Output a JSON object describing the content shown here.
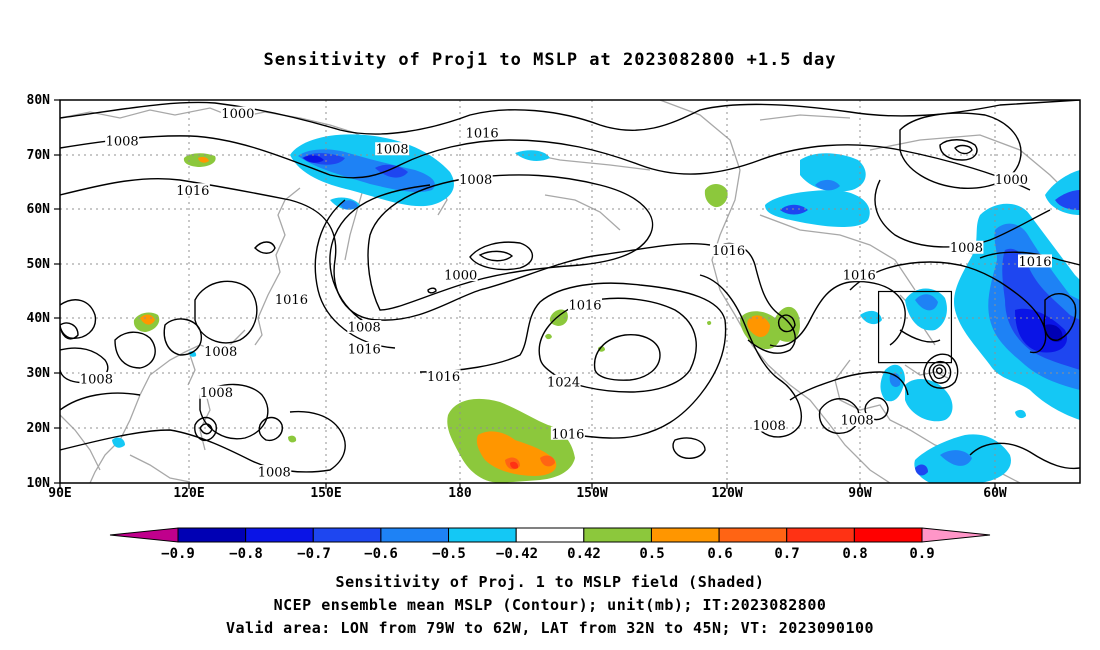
{
  "title": "Sensitivity of Proj1 to MSLP at 2023082800 +1.5 day",
  "axes": {
    "lat_labels": [
      "80N",
      "70N",
      "60N",
      "50N",
      "40N",
      "30N",
      "20N",
      "10N"
    ],
    "lon_labels": [
      "90E",
      "120E",
      "150E",
      "180",
      "150W",
      "120W",
      "90W",
      "60W"
    ],
    "lon_range": [
      90,
      328
    ],
    "lat_range": [
      10,
      80
    ],
    "lat_ticks": [
      80,
      70,
      60,
      50,
      40,
      30,
      20,
      10
    ],
    "lon_ticks": [
      90,
      120,
      150,
      180,
      210,
      240,
      270,
      300
    ]
  },
  "contour_labels": [
    {
      "text": "1000",
      "lon": 131.5,
      "lat": 77.5
    },
    {
      "text": "1008",
      "lon": 104.5,
      "lat": 72.5
    },
    {
      "text": "1008",
      "lon": 167.5,
      "lat": 71.0
    },
    {
      "text": "1016",
      "lon": 188.5,
      "lat": 74.0
    },
    {
      "text": "1008",
      "lon": 187.0,
      "lat": 65.5
    },
    {
      "text": "1016",
      "lon": 121.0,
      "lat": 63.5
    },
    {
      "text": "1000",
      "lon": 312.0,
      "lat": 65.5
    },
    {
      "text": "1000",
      "lon": 183.5,
      "lat": 48.0
    },
    {
      "text": "1016",
      "lon": 246.0,
      "lat": 52.5
    },
    {
      "text": "1008",
      "lon": 301.5,
      "lat": 53.0
    },
    {
      "text": "1016",
      "lon": 317.5,
      "lat": 50.5
    },
    {
      "text": "1016",
      "lon": 276.5,
      "lat": 48.0
    },
    {
      "text": "1016",
      "lon": 144.0,
      "lat": 43.5
    },
    {
      "text": "1016",
      "lon": 212.5,
      "lat": 42.5
    },
    {
      "text": "1008",
      "lon": 161.0,
      "lat": 38.5
    },
    {
      "text": "1016",
      "lon": 161.0,
      "lat": 34.5
    },
    {
      "text": "1008",
      "lon": 127.5,
      "lat": 34.0
    },
    {
      "text": "1008",
      "lon": 98.5,
      "lat": 29.0
    },
    {
      "text": "1008",
      "lon": 126.5,
      "lat": 26.5
    },
    {
      "text": "1016",
      "lon": 179.5,
      "lat": 29.5
    },
    {
      "text": "1024",
      "lon": 207.5,
      "lat": 28.5
    },
    {
      "text": "1008",
      "lon": 255.5,
      "lat": 20.5
    },
    {
      "text": "1008",
      "lon": 276.0,
      "lat": 21.5
    },
    {
      "text": "1016",
      "lon": 208.5,
      "lat": 19.0
    },
    {
      "text": "1008",
      "lon": 140.0,
      "lat": 12.0
    }
  ],
  "valid_box": {
    "lon_min": 281,
    "lon_max": 298,
    "lat_min": 32,
    "lat_max": 45
  },
  "shading_colors": {
    "lt_-0.9": "#c0008c",
    "-0.9_-0.8": "#0000b4",
    "-0.8_-0.7": "#0a14e6",
    "-0.7_-0.6": "#1e46f0",
    "-0.6_-0.5": "#1e82f5",
    "-0.5_-0.42": "#14c8f5",
    "0.42_0.5": "#8cc83c",
    "0.5_0.6": "#ff9600",
    "0.6_0.7": "#ff6414",
    "0.7_0.8": "#ff3214",
    "0.8_0.9": "#ff0000",
    "gt_0.9": "#ff96c8"
  },
  "colorbar": {
    "labels": [
      "−0.9",
      "−0.8",
      "−0.7",
      "−0.6",
      "−0.5",
      "−0.42",
      "0.42",
      "0.5",
      "0.6",
      "0.7",
      "0.8",
      "0.9"
    ],
    "colors": [
      "#c0008c",
      "#0000b4",
      "#0a14e6",
      "#1e46f0",
      "#1e82f5",
      "#14c8f5",
      "#ffffff",
      "#8cc83c",
      "#ff9600",
      "#ff6414",
      "#ff3214",
      "#ff0000",
      "#ff96c8"
    ]
  },
  "captions": [
    "Sensitivity of Proj. 1 to MSLP field (Shaded)",
    "NCEP ensemble mean MSLP (Contour); unit(mb); IT:2023082800",
    "Valid area: LON from 79W to 62W, LAT from 32N to 45N; VT: 2023090100"
  ]
}
